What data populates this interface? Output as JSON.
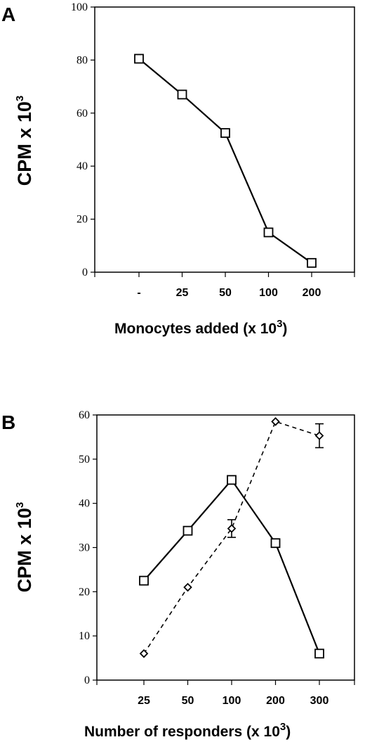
{
  "chart_data": [
    {
      "panel": "A",
      "type": "line",
      "ylabel": "CPM x 10",
      "ylabel_sup": "3",
      "xlabel": "Monocytes added (x 10",
      "xlabel_sup": "3",
      "xlabel_close": ")",
      "categories": [
        "-",
        "25",
        "50",
        "100",
        "200"
      ],
      "ylim": [
        0,
        100
      ],
      "yticks": [
        "0",
        "20",
        "40",
        "60",
        "80",
        "100"
      ],
      "ytick_values": [
        0,
        20,
        40,
        60,
        80,
        100
      ],
      "series": [
        {
          "marker": "square",
          "line": "solid",
          "values": [
            80.5,
            67,
            52.5,
            15,
            3.5
          ]
        }
      ]
    },
    {
      "panel": "B",
      "type": "line",
      "ylabel": "CPM x 10",
      "ylabel_sup": "3",
      "xlabel": "Number of responders (x 10",
      "xlabel_sup": "3",
      "xlabel_close": ")",
      "categories": [
        "25",
        "50",
        "100",
        "200",
        "300"
      ],
      "ylim": [
        0,
        60
      ],
      "yticks": [
        "0",
        "10",
        "20",
        "30",
        "40",
        "50",
        "60"
      ],
      "ytick_values": [
        0,
        10,
        20,
        30,
        40,
        50,
        60
      ],
      "series": [
        {
          "marker": "square",
          "line": "solid",
          "values": [
            22.5,
            33.8,
            45.3,
            31.0,
            6.0
          ]
        },
        {
          "marker": "diamond",
          "line": "dashed",
          "values": [
            6.0,
            21.0,
            34.3,
            58.5,
            55.3
          ],
          "errors": [
            null,
            null,
            2.0,
            null,
            2.7
          ]
        }
      ]
    }
  ]
}
